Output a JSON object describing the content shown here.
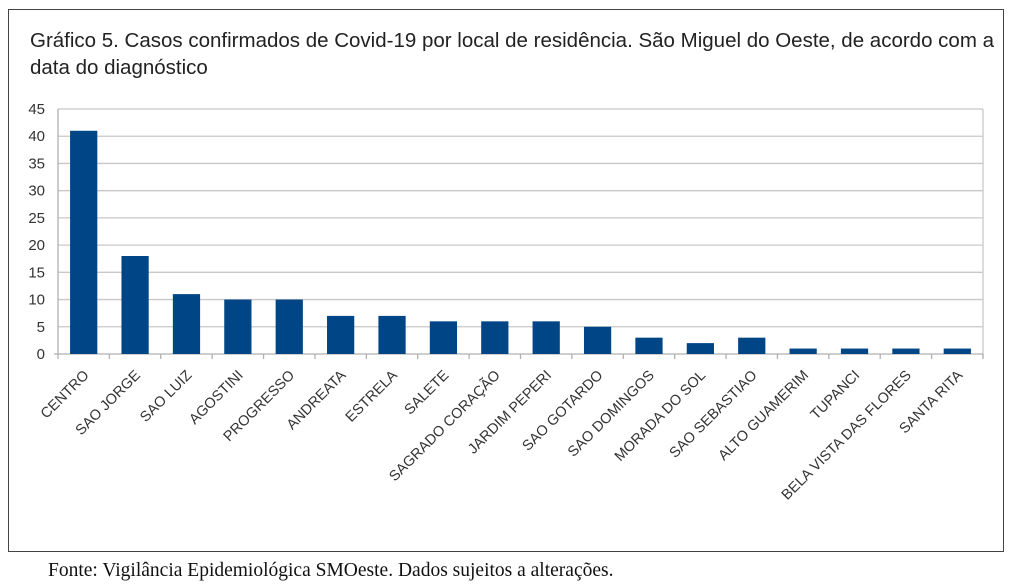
{
  "chart_data": {
    "type": "bar",
    "title": "Gráfico 5. Casos confirmados de Covid-19 por local de residência. São Miguel do Oeste, de acordo com a data do diagnóstico",
    "categories": [
      "CENTRO",
      "SAO JORGE",
      "SAO LUIZ",
      "AGOSTINI",
      "PROGRESSO",
      "ANDREATA",
      "ESTRELA",
      "SALETE",
      "SAGRADO CORAÇÃO",
      "JARDIM PEPERI",
      "SAO GOTARDO",
      "SAO DOMINGOS",
      "MORADA DO SOL",
      "SAO SEBASTIAO",
      "ALTO GUAMERIM",
      "TUPANCI",
      "BELA VISTA DAS FLORES",
      "SANTA RITA"
    ],
    "values": [
      41,
      18,
      11,
      10,
      10,
      7,
      7,
      6,
      6,
      6,
      5,
      3,
      2,
      3,
      1,
      1,
      1,
      1
    ],
    "xlabel": "",
    "ylabel": "",
    "ylim": [
      0,
      45
    ],
    "yticks": [
      0,
      5,
      10,
      15,
      20,
      25,
      30,
      35,
      40,
      45
    ],
    "grid": true,
    "legend": "none",
    "bar_color": "#004586"
  },
  "source": "Fonte: Vigilância Epidemiológica SMOeste. Dados sujeitos a alterações."
}
